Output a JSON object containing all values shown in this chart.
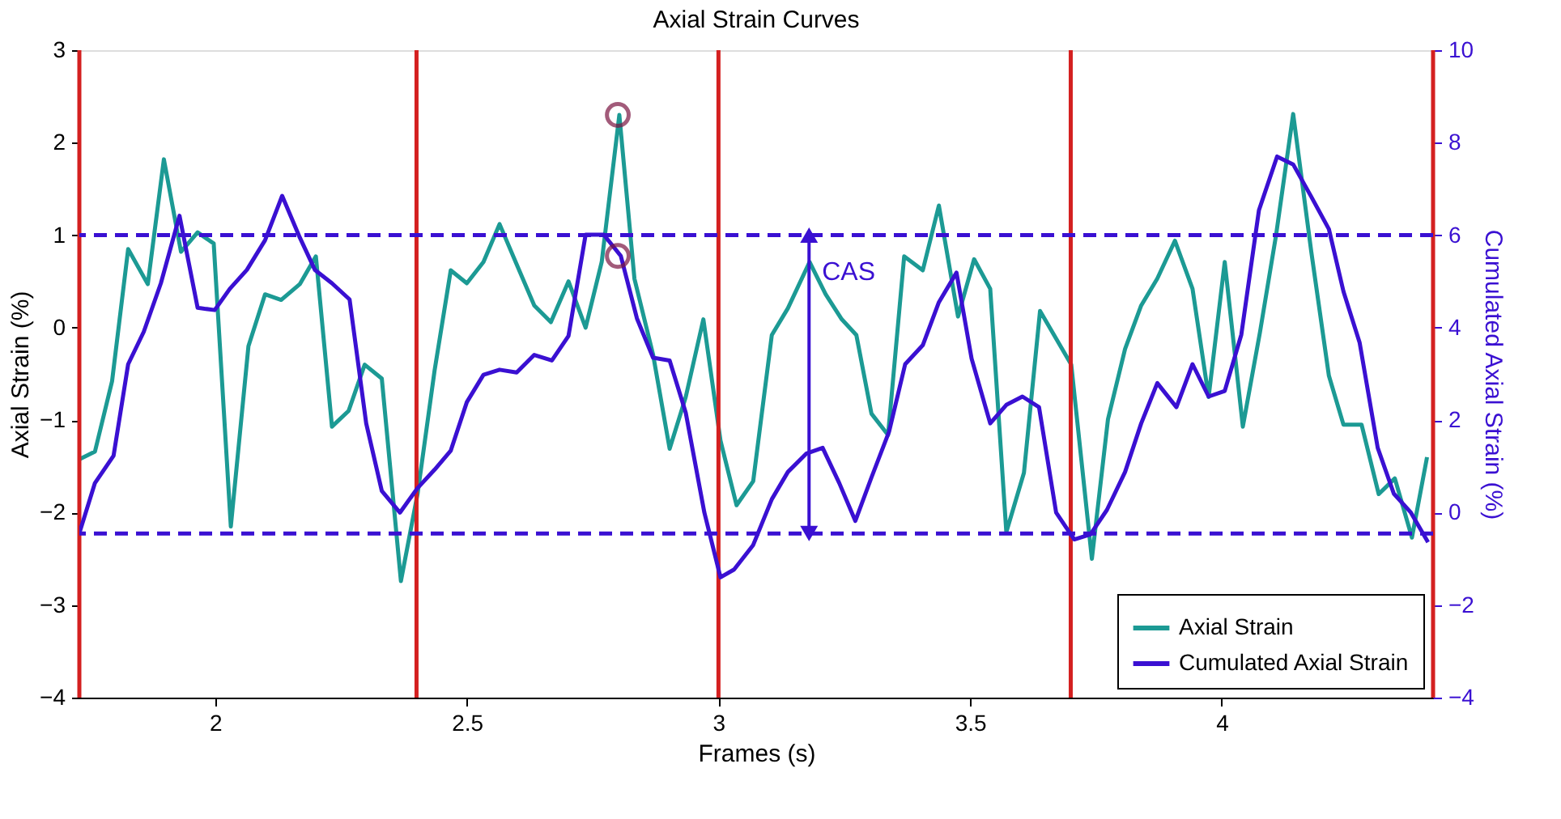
{
  "chart_data": {
    "type": "line",
    "title": "Axial Strain Curves",
    "xlabel": "Frames (s)",
    "ylabel": "Axial Strain (%)",
    "y2label": "Cumulated Axial Strain (%)",
    "xlim": [
      1.73,
      4.42
    ],
    "xticks": [
      2,
      2.5,
      3,
      3.5,
      4
    ],
    "ylim": [
      -4,
      3
    ],
    "yticks": [
      -4,
      -3,
      -2,
      -1,
      0,
      1,
      2,
      3
    ],
    "y2lim": [
      -4,
      10
    ],
    "y2ticks": [
      -4,
      -2,
      0,
      2,
      4,
      6,
      8,
      10
    ],
    "grid": false,
    "legend": "bottom right",
    "line_style": "solid",
    "series": [
      {
        "name": "Axial Strain",
        "color": "#1c9a94",
        "x": [
          1.731,
          1.761,
          1.795,
          1.827,
          1.866,
          1.898,
          1.932,
          1.965,
          1.997,
          2.031,
          2.066,
          2.099,
          2.131,
          2.168,
          2.2,
          2.232,
          2.265,
          2.297,
          2.331,
          2.369,
          2.402,
          2.436,
          2.468,
          2.5,
          2.533,
          2.565,
          2.597,
          2.634,
          2.667,
          2.702,
          2.736,
          2.768,
          2.803,
          2.833,
          2.87,
          2.903,
          2.935,
          2.97,
          3.004,
          3.036,
          3.069,
          3.106,
          3.138,
          3.181,
          3.213,
          3.245,
          3.274,
          3.304,
          3.337,
          3.369,
          3.406,
          3.438,
          3.476,
          3.508,
          3.54,
          3.572,
          3.607,
          3.639,
          3.701,
          3.742,
          3.774,
          3.808,
          3.84,
          3.872,
          3.907,
          3.942,
          3.974,
          4.006,
          4.042,
          4.076,
          4.108,
          4.142,
          4.178,
          4.213,
          4.242,
          4.278,
          4.312,
          4.344,
          4.378,
          4.408
        ],
        "values": [
          -1.42,
          -1.34,
          -0.58,
          0.85,
          0.47,
          1.82,
          0.82,
          1.03,
          0.91,
          -2.15,
          -0.2,
          0.36,
          0.3,
          0.47,
          0.77,
          -1.07,
          -0.9,
          -0.4,
          -0.55,
          -2.74,
          -1.8,
          -0.46,
          0.62,
          0.48,
          0.71,
          1.12,
          0.71,
          0.24,
          0.06,
          0.5,
          0.0,
          0.71,
          2.3,
          0.53,
          -0.29,
          -1.31,
          -0.75,
          0.09,
          -1.22,
          -1.92,
          -1.66,
          -0.08,
          0.21,
          0.71,
          0.36,
          0.09,
          -0.08,
          -0.93,
          -1.16,
          0.77,
          0.62,
          1.32,
          0.12,
          0.74,
          0.42,
          -2.21,
          -1.57,
          0.18,
          -0.4,
          -2.5,
          -0.99,
          -0.23,
          0.24,
          0.53,
          0.94,
          0.42,
          -0.75,
          0.71,
          -1.07,
          -0.05,
          1.0,
          2.31,
          0.82,
          -0.52,
          -1.05,
          -1.05,
          -1.8,
          -1.63,
          -2.27,
          -1.4
        ]
      },
      {
        "name": "Cumulated Axial Strain",
        "axis": "y2",
        "color": "#3a10d2",
        "x": [
          1.731,
          1.761,
          1.798,
          1.827,
          1.858,
          1.892,
          1.929,
          1.965,
          1.999,
          2.029,
          2.063,
          2.099,
          2.133,
          2.168,
          2.198,
          2.232,
          2.267,
          2.3,
          2.331,
          2.367,
          2.402,
          2.436,
          2.468,
          2.5,
          2.533,
          2.565,
          2.599,
          2.634,
          2.669,
          2.702,
          2.736,
          2.772,
          2.806,
          2.838,
          2.87,
          2.903,
          2.935,
          2.972,
          3.004,
          3.031,
          3.069,
          3.106,
          3.138,
          3.175,
          3.207,
          3.24,
          3.272,
          3.304,
          3.339,
          3.371,
          3.406,
          3.438,
          3.473,
          3.503,
          3.54,
          3.572,
          3.604,
          3.637,
          3.671,
          3.707,
          3.739,
          3.772,
          3.808,
          3.84,
          3.872,
          3.91,
          3.942,
          3.974,
          4.006,
          4.039,
          4.074,
          4.11,
          4.142,
          4.178,
          4.213,
          4.242,
          4.274,
          4.31,
          4.342,
          4.376,
          4.41
        ],
        "values": [
          -0.41,
          0.64,
          1.23,
          3.21,
          3.91,
          4.96,
          6.42,
          4.43,
          4.38,
          4.84,
          5.25,
          5.89,
          6.85,
          5.95,
          5.25,
          4.96,
          4.61,
          1.93,
          0.47,
          0.0,
          0.53,
          0.93,
          1.34,
          2.39,
          2.98,
          3.09,
          3.03,
          3.41,
          3.29,
          3.82,
          6.01,
          6.01,
          5.55,
          4.2,
          3.35,
          3.29,
          2.16,
          0.0,
          -1.4,
          -1.23,
          -0.7,
          0.29,
          0.88,
          1.28,
          1.4,
          0.64,
          -0.18,
          0.76,
          1.75,
          3.21,
          3.62,
          4.55,
          5.19,
          3.33,
          1.93,
          2.33,
          2.51,
          2.28,
          0.0,
          -0.58,
          -0.47,
          0.06,
          0.88,
          1.93,
          2.8,
          2.28,
          3.21,
          2.51,
          2.63,
          3.85,
          6.54,
          7.7,
          7.53,
          6.83,
          6.13,
          4.78,
          3.68,
          1.4,
          0.41,
          0.0,
          -0.64
        ]
      },
      {
        "type": "scatter",
        "marker": "circle",
        "color": "#7b1642",
        "x": [
          2.8
        ],
        "values": [
          2.3
        ]
      },
      {
        "type": "scatter",
        "marker": "circle",
        "axis": "y2",
        "color": "#7b1642",
        "x": [
          2.8
        ],
        "values": [
          5.55
        ]
      }
    ],
    "ref_lines": [
      {
        "axis": "x",
        "value": 1.73,
        "color": "#d42020",
        "line_style": "solid"
      },
      {
        "axis": "x",
        "value": 2.4,
        "color": "#d42020",
        "line_style": "solid"
      },
      {
        "axis": "x",
        "value": 3.0,
        "color": "#d42020",
        "line_style": "solid"
      },
      {
        "axis": "x",
        "value": 3.7,
        "color": "#d42020",
        "line_style": "solid"
      },
      {
        "axis": "x",
        "value": 4.42,
        "color": "#d42020",
        "line_style": "solid"
      },
      {
        "axis": "y2",
        "value": 6,
        "color": "#3a10d2",
        "line_style": "dashed"
      },
      {
        "axis": "y2",
        "value": -0.45,
        "color": "#3a10d2",
        "line_style": "dashed"
      }
    ],
    "annotations": [
      {
        "text": "CAS",
        "x": 3.18,
        "y": 0.6
      }
    ]
  }
}
